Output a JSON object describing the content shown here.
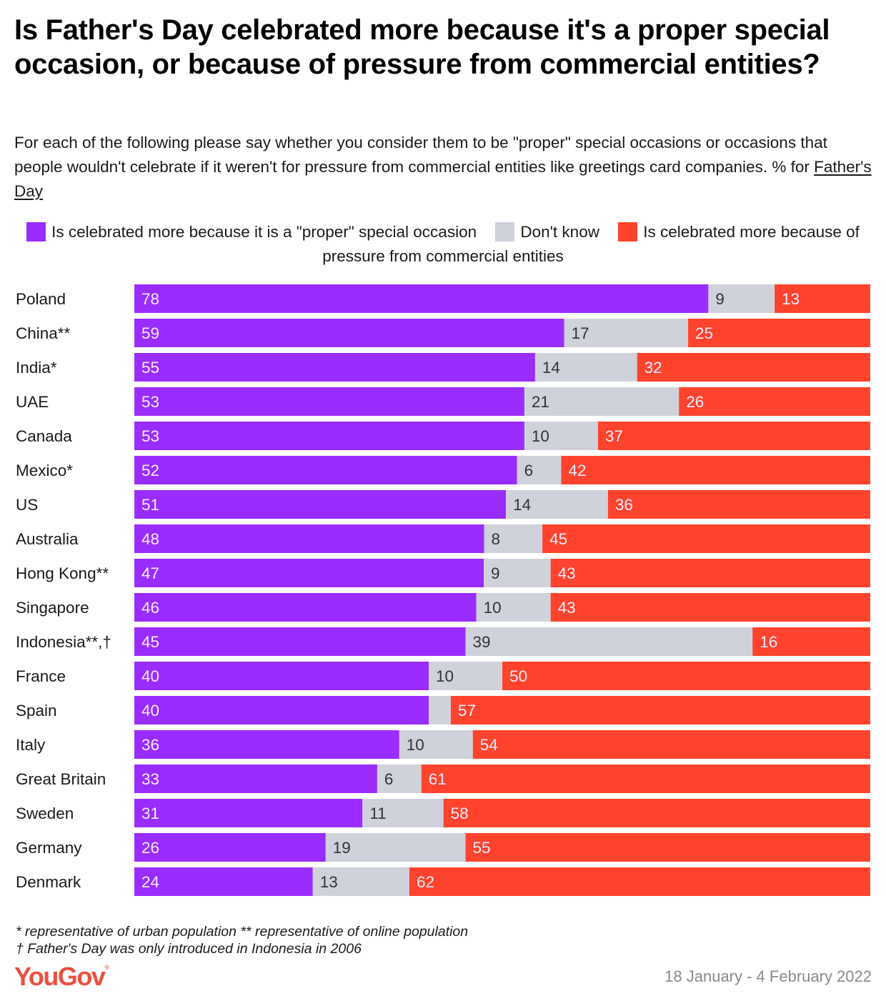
{
  "header": {
    "title": "Is Father's Day celebrated more because it's a proper special occasion, or because of pressure from commercial entities?",
    "subtitle_text": "For each of the following please say whether you consider them to be \"proper\" special occasions or occasions that people wouldn't celebrate if it weren't for pressure from commercial entities like greetings card companies. % for ",
    "subtitle_link": "Father's Day"
  },
  "colors": {
    "proper": "#9b2cff",
    "dont_know": "#cfd2db",
    "commercial": "#ff432c",
    "label_light": "#f2ecff",
    "label_dark": "#333333"
  },
  "chart_data": {
    "type": "bar",
    "orientation": "horizontal",
    "stacked": true,
    "title": "Is Father's Day celebrated more because it's a proper special occasion, or because of pressure from commercial entities?",
    "xlabel": "",
    "ylabel": "",
    "xlim": [
      0,
      100
    ],
    "grid": false,
    "legend_position": "top",
    "categories": [
      "Poland",
      "China**",
      "India*",
      "UAE",
      "Canada",
      "Mexico*",
      "US",
      "Australia",
      "Hong Kong**",
      "Singapore",
      "Indonesia**,†",
      "France",
      "Spain",
      "Italy",
      "Great Britain",
      "Sweden",
      "Germany",
      "Denmark"
    ],
    "series": [
      {
        "name": "Is celebrated more because it is a \"proper\" special occasion",
        "color_key": "proper",
        "values": [
          78,
          59,
          55,
          53,
          53,
          52,
          51,
          48,
          47,
          46,
          45,
          40,
          40,
          36,
          33,
          31,
          26,
          24
        ],
        "labels": [
          "78",
          "59",
          "55",
          "53",
          "53",
          "52",
          "51",
          "48",
          "47",
          "46",
          "45",
          "40",
          "40",
          "36",
          "33",
          "31",
          "26",
          "24"
        ]
      },
      {
        "name": "Don't know",
        "color_key": "dont_know",
        "values": [
          9,
          17,
          14,
          21,
          10,
          6,
          14,
          8,
          9,
          10,
          39,
          10,
          3,
          10,
          6,
          11,
          19,
          13
        ],
        "labels": [
          "9",
          "17",
          "14",
          "21",
          "10",
          "6",
          "14",
          "8",
          "9",
          "10",
          "39",
          "10",
          "",
          "10",
          "6",
          "11",
          "19",
          "13"
        ]
      },
      {
        "name": "Is celebrated more because of pressure from commercial entities",
        "color_key": "commercial",
        "values": [
          13,
          25,
          32,
          26,
          37,
          42,
          36,
          45,
          43,
          43,
          16,
          50,
          57,
          54,
          61,
          58,
          55,
          62
        ],
        "labels": [
          "13",
          "25",
          "32",
          "26",
          "37",
          "42",
          "36",
          "45",
          "43",
          "43",
          "16",
          "50",
          "57",
          "54",
          "61",
          "58",
          "55",
          "62"
        ]
      }
    ]
  },
  "legend": {
    "items": [
      {
        "label": "Is celebrated more because it is a \"proper\" special occasion"
      },
      {
        "label": "Don't know"
      },
      {
        "label": "Is celebrated more because of pressure from commercial entities"
      }
    ]
  },
  "footer": {
    "note1": "* representative of urban population ** representative of online population",
    "note2": "† Father's Day was only introduced in Indonesia in 2006",
    "logo": "YouGov",
    "logo_mark": "®",
    "date": "18 January - 4 February 2022"
  }
}
